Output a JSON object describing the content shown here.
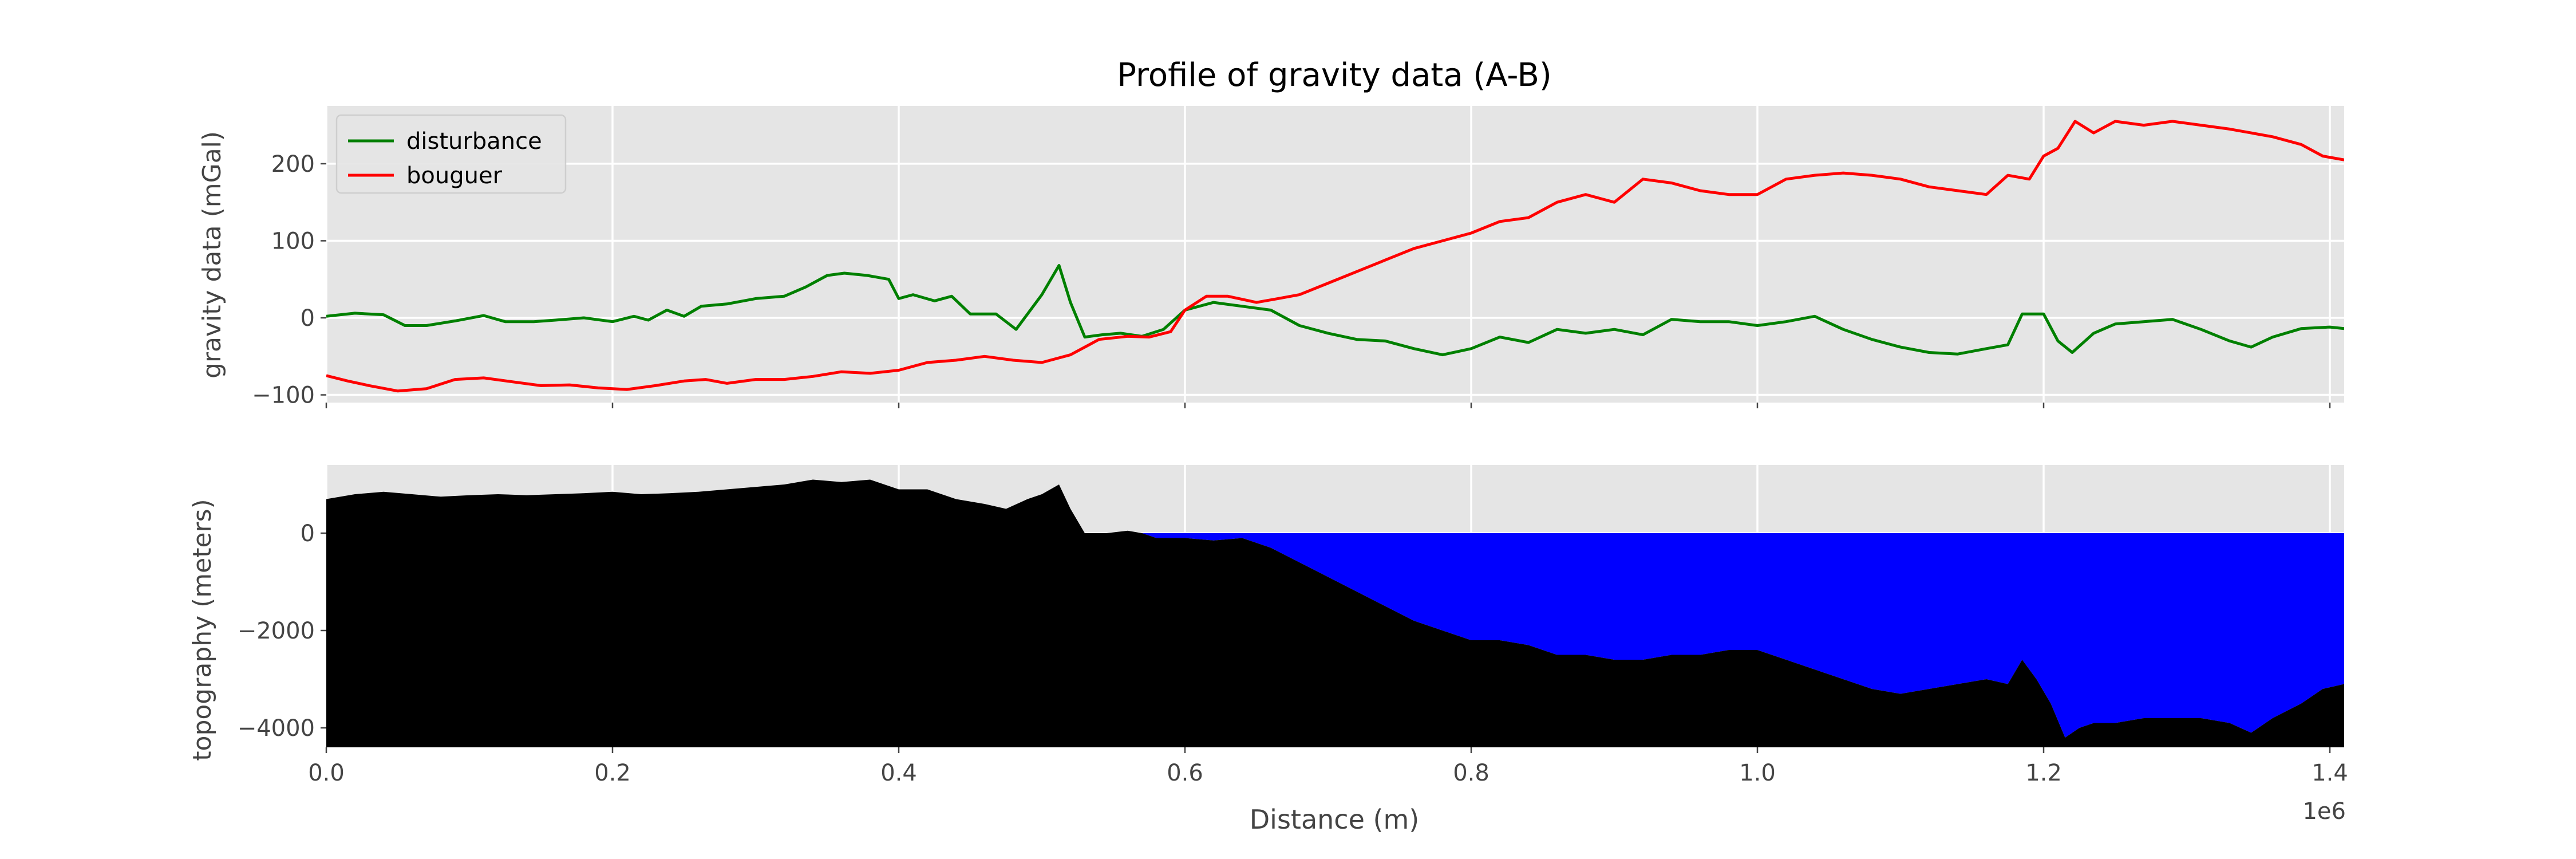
{
  "chart_data": [
    {
      "type": "line",
      "title": "Profile of gravity data (A-B)",
      "xlabel": "",
      "ylabel": "gravity data (mGal)",
      "xlim": [
        0,
        1410000
      ],
      "ylim": [
        -110,
        275
      ],
      "x_ticks": [
        0,
        200000,
        400000,
        600000,
        800000,
        1000000,
        1200000,
        1400000
      ],
      "y_ticks": [
        -100,
        0,
        100,
        200
      ],
      "y_tick_labels": [
        "−100",
        "0",
        "100",
        "200"
      ],
      "grid": true,
      "legend": "top-left",
      "series": [
        {
          "name": "disturbance",
          "color": "#008000",
          "x": [
            0,
            20000,
            40000,
            55000,
            70000,
            90000,
            110000,
            125000,
            145000,
            160000,
            180000,
            200000,
            215000,
            225000,
            238000,
            250000,
            262000,
            280000,
            300000,
            320000,
            335000,
            350000,
            362000,
            378000,
            393000,
            400000,
            410000,
            425000,
            437000,
            450000,
            468000,
            482000,
            500000,
            512000,
            520000,
            530000,
            542000,
            555000,
            570000,
            585000,
            600000,
            620000,
            640000,
            660000,
            680000,
            700000,
            720000,
            740000,
            760000,
            780000,
            800000,
            820000,
            840000,
            860000,
            880000,
            900000,
            920000,
            940000,
            960000,
            980000,
            1000000,
            1020000,
            1040000,
            1060000,
            1080000,
            1100000,
            1120000,
            1140000,
            1160000,
            1175000,
            1185000,
            1200000,
            1210000,
            1220000,
            1235000,
            1250000,
            1270000,
            1290000,
            1310000,
            1330000,
            1345000,
            1360000,
            1380000,
            1400000,
            1410000
          ],
          "y": [
            2,
            6,
            4,
            -10,
            -10,
            -4,
            3,
            -5,
            -5,
            -3,
            0,
            -5,
            2,
            -3,
            10,
            2,
            15,
            18,
            25,
            28,
            40,
            55,
            58,
            55,
            50,
            25,
            30,
            22,
            28,
            5,
            5,
            -15,
            30,
            68,
            20,
            -25,
            -22,
            -20,
            -24,
            -15,
            10,
            20,
            15,
            10,
            -10,
            -20,
            -28,
            -30,
            -40,
            -48,
            -40,
            -25,
            -32,
            -15,
            -20,
            -15,
            -22,
            -2,
            -5,
            -5,
            -10,
            -5,
            2,
            -15,
            -28,
            -38,
            -45,
            -47,
            -40,
            -35,
            5,
            5,
            -30,
            -45,
            -20,
            -8,
            -5,
            -2,
            -15,
            -30,
            -38,
            -25,
            -14,
            -12,
            -14
          ]
        },
        {
          "name": "bouguer",
          "color": "#ff0000",
          "x": [
            0,
            15000,
            30000,
            50000,
            70000,
            90000,
            110000,
            130000,
            150000,
            170000,
            190000,
            210000,
            230000,
            250000,
            265000,
            280000,
            300000,
            320000,
            340000,
            360000,
            380000,
            400000,
            420000,
            440000,
            460000,
            480000,
            500000,
            520000,
            540000,
            560000,
            575000,
            590000,
            600000,
            615000,
            630000,
            650000,
            665000,
            680000,
            700000,
            720000,
            740000,
            760000,
            780000,
            800000,
            820000,
            840000,
            860000,
            880000,
            900000,
            920000,
            940000,
            960000,
            980000,
            1000000,
            1020000,
            1040000,
            1060000,
            1080000,
            1100000,
            1120000,
            1140000,
            1160000,
            1175000,
            1190000,
            1200000,
            1210000,
            1222000,
            1235000,
            1250000,
            1270000,
            1290000,
            1310000,
            1330000,
            1345000,
            1360000,
            1380000,
            1395000,
            1410000
          ],
          "y": [
            -75,
            -82,
            -88,
            -95,
            -92,
            -80,
            -78,
            -83,
            -88,
            -87,
            -91,
            -93,
            -88,
            -82,
            -80,
            -85,
            -80,
            -80,
            -76,
            -70,
            -72,
            -68,
            -58,
            -55,
            -50,
            -55,
            -58,
            -48,
            -28,
            -24,
            -25,
            -18,
            10,
            28,
            28,
            20,
            25,
            30,
            45,
            60,
            75,
            90,
            100,
            110,
            125,
            130,
            150,
            160,
            150,
            180,
            175,
            165,
            160,
            160,
            180,
            185,
            188,
            185,
            180,
            170,
            165,
            160,
            185,
            180,
            210,
            220,
            255,
            240,
            255,
            250,
            255,
            250,
            245,
            240,
            235,
            225,
            210,
            205
          ]
        }
      ]
    },
    {
      "type": "area",
      "title": "",
      "xlabel": "Distance (m)",
      "ylabel": "topography (meters)",
      "x_offset_label": "1e6",
      "xlim": [
        0,
        1410000
      ],
      "ylim": [
        -4400,
        1400
      ],
      "x_ticks": [
        0,
        200000,
        400000,
        600000,
        800000,
        1000000,
        1200000,
        1400000
      ],
      "x_tick_labels": [
        "0.0",
        "0.2",
        "0.4",
        "0.6",
        "0.8",
        "1.0",
        "1.2",
        "1.4"
      ],
      "y_ticks": [
        -4000,
        -2000,
        0
      ],
      "y_tick_labels": [
        "−4000",
        "−2000",
        "0"
      ],
      "grid": true,
      "water_color": "#0000ff",
      "ground_color": "#000000",
      "topography": {
        "x": [
          0,
          20000,
          40000,
          60000,
          80000,
          100000,
          120000,
          140000,
          160000,
          180000,
          200000,
          220000,
          240000,
          260000,
          280000,
          300000,
          320000,
          340000,
          360000,
          380000,
          400000,
          420000,
          440000,
          460000,
          475000,
          490000,
          500000,
          512000,
          520000,
          530000,
          545000,
          560000,
          570000,
          580000,
          600000,
          620000,
          640000,
          660000,
          680000,
          700000,
          720000,
          740000,
          760000,
          780000,
          800000,
          820000,
          840000,
          860000,
          880000,
          900000,
          920000,
          940000,
          960000,
          980000,
          1000000,
          1020000,
          1040000,
          1060000,
          1080000,
          1100000,
          1120000,
          1140000,
          1160000,
          1175000,
          1185000,
          1195000,
          1205000,
          1215000,
          1225000,
          1235000,
          1250000,
          1270000,
          1290000,
          1310000,
          1330000,
          1345000,
          1360000,
          1380000,
          1395000,
          1410000
        ],
        "y": [
          700,
          800,
          850,
          800,
          750,
          780,
          800,
          780,
          800,
          820,
          850,
          800,
          820,
          850,
          900,
          950,
          1000,
          1100,
          1050,
          1100,
          900,
          900,
          700,
          600,
          500,
          700,
          800,
          1000,
          500,
          0,
          0,
          50,
          0,
          -100,
          -100,
          -150,
          -100,
          -300,
          -600,
          -900,
          -1200,
          -1500,
          -1800,
          -2000,
          -2200,
          -2200,
          -2300,
          -2500,
          -2500,
          -2600,
          -2600,
          -2500,
          -2500,
          -2400,
          -2400,
          -2600,
          -2800,
          -3000,
          -3200,
          -3300,
          -3200,
          -3100,
          -3000,
          -3100,
          -2600,
          -3000,
          -3500,
          -4200,
          -4000,
          -3900,
          -3900,
          -3800,
          -3800,
          -3800,
          -3900,
          -4100,
          -3800,
          -3500,
          -3200,
          -3100
        ]
      }
    }
  ]
}
